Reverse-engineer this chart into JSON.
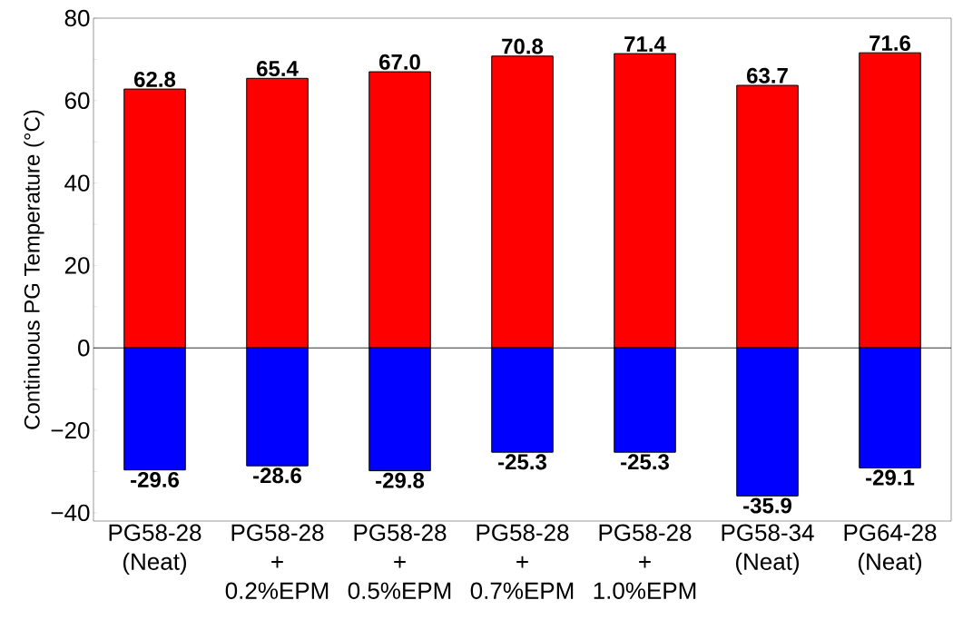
{
  "chart_data": {
    "type": "bar",
    "ylabel": "Continuous PG Temperature (°C)",
    "categories": [
      "PG58-28 (Neat)",
      "PG58-28 + 0.2%EPM",
      "PG58-28 + 0.5%EPM",
      "PG58-28 + 0.7%EPM",
      "PG58-28 + 1.0%EPM",
      "PG58-34 (Neat)",
      "PG64-28 (Neat)"
    ],
    "series": [
      {
        "color": "#ff0000",
        "values": [
          62.8,
          65.4,
          67.0,
          70.8,
          71.4,
          63.7,
          71.6
        ],
        "value_labels": [
          "62.8",
          "65.4",
          "67.0",
          "70.8",
          "71.4",
          "63.7",
          "71.6"
        ]
      },
      {
        "color": "#0000ff",
        "values": [
          -29.6,
          -28.6,
          -29.8,
          -25.3,
          -25.3,
          -35.9,
          -29.1
        ],
        "value_labels": [
          "-29.6",
          "-28.6",
          "-29.8",
          "-25.3",
          "-25.3",
          "-35.9",
          "-29.1"
        ]
      }
    ],
    "ylim": [
      -42,
      80
    ],
    "yticks": [
      {
        "value": -40,
        "label": "−40"
      },
      {
        "value": -30,
        "label": null
      },
      {
        "value": -20,
        "label": "−20"
      },
      {
        "value": -10,
        "label": null
      },
      0,
      {
        "value": 10,
        "label": null
      },
      20,
      {
        "value": 30,
        "label": null
      },
      40,
      {
        "value": 50,
        "label": null
      },
      60,
      {
        "value": 70,
        "label": null
      },
      80
    ],
    "ref_lines": [
      {
        "axis": "y",
        "value": 0,
        "color": "#000000"
      }
    ],
    "stacked": true,
    "grid": false
  }
}
